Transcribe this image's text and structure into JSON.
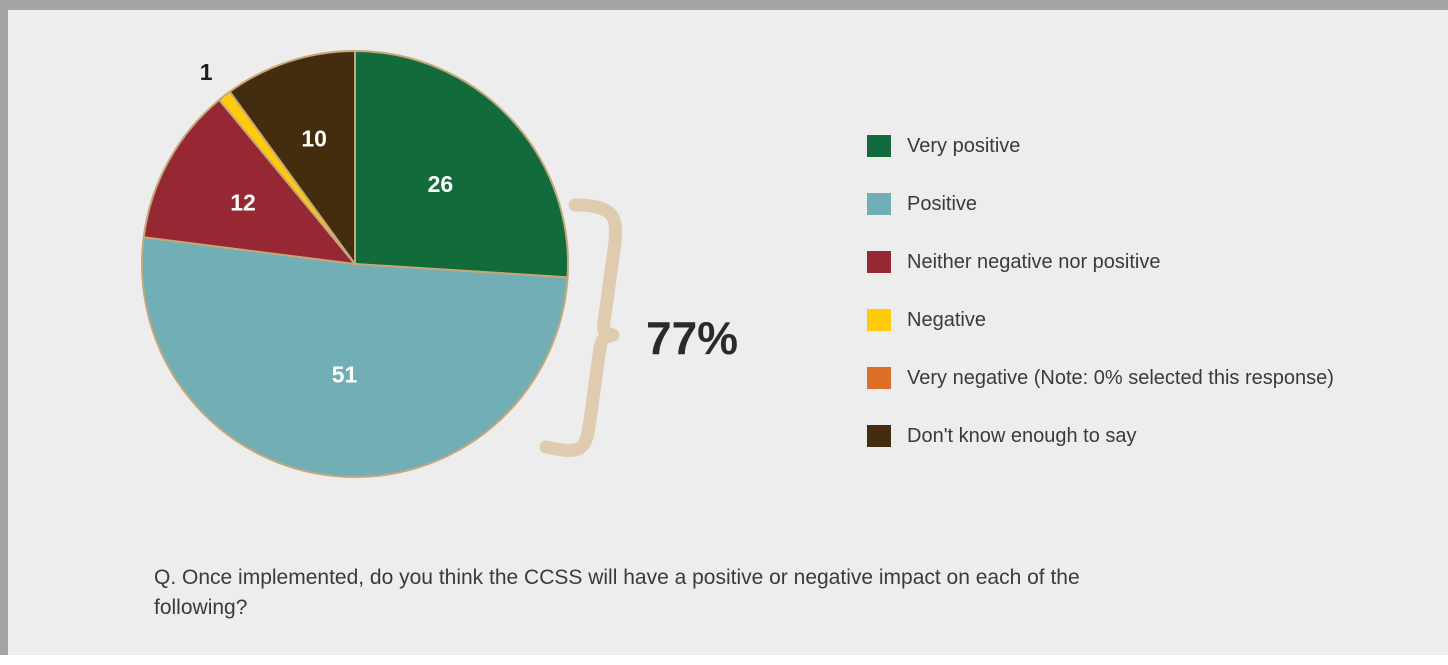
{
  "chart_data": {
    "type": "pie",
    "slices": [
      {
        "label": "Very positive",
        "value": 26,
        "color": "#126b3a",
        "label_color": "#ffffff"
      },
      {
        "label": "Positive",
        "value": 51,
        "color": "#72aeb5",
        "label_color": "#ffffff"
      },
      {
        "label": "Neither negative nor positive",
        "value": 12,
        "color": "#962834",
        "label_color": "#ffffff"
      },
      {
        "label": "Negative",
        "value": 1,
        "color": "#ffcb08",
        "label_color": "#1e1e1e"
      },
      {
        "label": "Very negative (Note: 0% selected this response)",
        "value": 0,
        "color": "#dc6f27",
        "label_color": "#ffffff"
      },
      {
        "label": "Don't know enough to say",
        "value": 10,
        "color": "#442d0e",
        "label_color": "#ffffff"
      }
    ],
    "data_labels": [
      "26",
      "51",
      "12",
      "1",
      "",
      "10"
    ],
    "start_angle": "12 o'clock",
    "direction": "clockwise",
    "legend_position": "right",
    "annotation": {
      "text": "77%",
      "spans": [
        "Very positive",
        "Positive"
      ],
      "bracket_color": "#dfccaf"
    },
    "slice_border_color": "#c6a77c",
    "background_color": "#ededed"
  },
  "question": "Q. Once implemented, do you think the CCSS will have a positive or negative impact on each of the following?"
}
